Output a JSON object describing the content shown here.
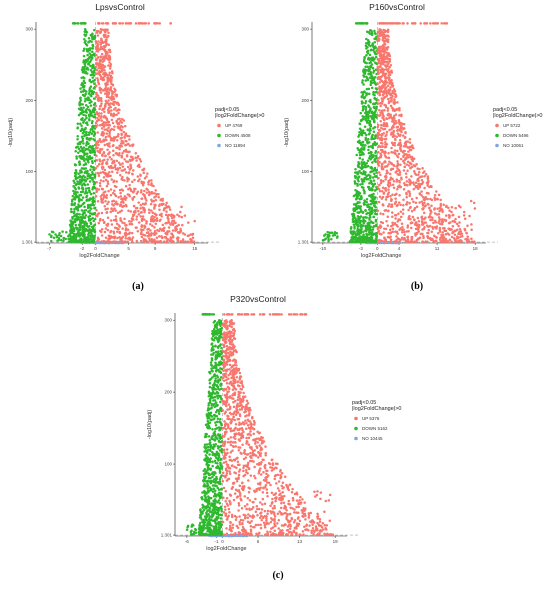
{
  "chart_data": [
    {
      "type": "scatter",
      "title": "LpsvsControl",
      "caption": "(a)",
      "xlabel": "log2FoldChange",
      "ylabel": "-log10(padj)",
      "xticks": [
        "-7",
        "-2",
        "0",
        "5",
        "9",
        "15"
      ],
      "yticks": [
        "1.301",
        "100",
        "200",
        "300"
      ],
      "xlim": [
        -9,
        17
      ],
      "ylim": [
        0,
        310
      ],
      "threshold_y": 1.301,
      "threshold_x": 0,
      "legend": {
        "title_line1": "padj<0.05",
        "title_line2": "|log2FoldChange|>0",
        "placement": "right",
        "entries": [
          {
            "key": "up",
            "label": "UP 4769",
            "color": "#F8766D"
          },
          {
            "key": "down",
            "label": "DOWN 4508",
            "color": "#2EB82E"
          },
          {
            "key": "no",
            "label": "NO 11894",
            "color": "#7FA6E0"
          }
        ]
      },
      "series": [
        {
          "name": "UP",
          "count": 4769
        },
        {
          "name": "DOWN",
          "count": 4508
        },
        {
          "name": "NO",
          "count": 11894
        }
      ],
      "right_tail": 15,
      "left_tail": -7,
      "down_edge": -4
    },
    {
      "type": "scatter",
      "title": "P160vsControl",
      "caption": "(b)",
      "xlabel": "log2FoldChange",
      "ylabel": "-log10(padj)",
      "xticks": [
        "-10",
        "-3",
        "0",
        "4",
        "11",
        "18"
      ],
      "yticks": [
        "1.301",
        "100",
        "200",
        "300"
      ],
      "xlim": [
        -12,
        20
      ],
      "ylim": [
        0,
        310
      ],
      "threshold_y": 1.301,
      "threshold_x": 0,
      "legend": {
        "title_line1": "padj<0.05",
        "title_line2": "|log2FoldChange|>0",
        "placement": "right",
        "entries": [
          {
            "key": "up",
            "label": "UP 5722",
            "color": "#F8766D"
          },
          {
            "key": "down",
            "label": "DOWN 5496",
            "color": "#2EB82E"
          },
          {
            "key": "no",
            "label": "NO 10061",
            "color": "#7FA6E0"
          }
        ]
      },
      "series": [
        {
          "name": "UP",
          "count": 5722
        },
        {
          "name": "DOWN",
          "count": 5496
        },
        {
          "name": "NO",
          "count": 10061
        }
      ],
      "right_tail": 18,
      "left_tail": -10,
      "down_edge": -5
    },
    {
      "type": "scatter",
      "title": "P320vsControl",
      "caption": "(c)",
      "xlabel": "log2FoldChange",
      "ylabel": "-log10(padj)",
      "xticks": [
        "-6",
        "-1",
        "0",
        "6",
        "13",
        "19"
      ],
      "yticks": [
        "1.301",
        "100",
        "200",
        "300"
      ],
      "xlim": [
        -8,
        21
      ],
      "ylim": [
        0,
        310
      ],
      "threshold_y": 1.301,
      "threshold_x": 0,
      "legend": {
        "title_line1": "padj<0.05",
        "title_line2": "|log2FoldChange|>0",
        "placement": "right",
        "entries": [
          {
            "key": "up",
            "label": "UP 5376",
            "color": "#F8766D"
          },
          {
            "key": "down",
            "label": "DOWN 5162",
            "color": "#2EB82E"
          },
          {
            "key": "no",
            "label": "NO 10445",
            "color": "#7FA6E0"
          }
        ]
      },
      "series": [
        {
          "name": "UP",
          "count": 5376
        },
        {
          "name": "DOWN",
          "count": 5162
        },
        {
          "name": "NO",
          "count": 10445
        }
      ],
      "right_tail": 19,
      "left_tail": -6,
      "down_edge": -4
    }
  ]
}
